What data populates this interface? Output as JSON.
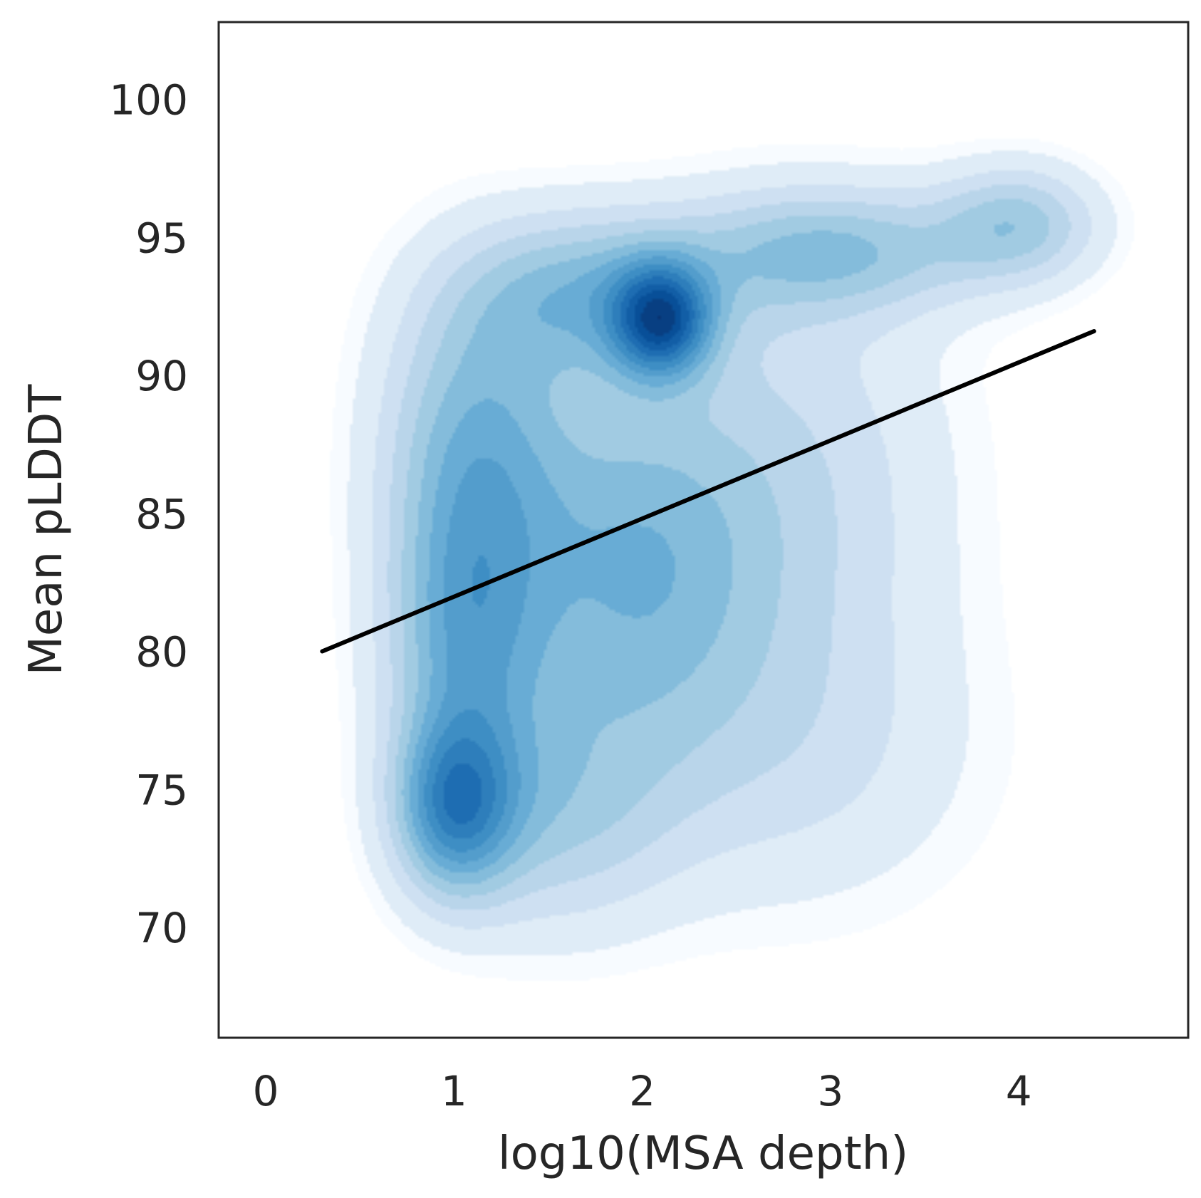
{
  "chart_data": {
    "type": "heatmap",
    "subtype": "kde-density-with-regression-line",
    "title": "",
    "xlabel": "log10(MSA depth)",
    "ylabel": "Mean pLDDT",
    "xlim": [
      -0.25,
      4.9
    ],
    "ylim": [
      66,
      102.8
    ],
    "x_ticks": [
      0,
      1,
      2,
      3,
      4
    ],
    "y_ticks": [
      70,
      75,
      80,
      85,
      90,
      95,
      100
    ],
    "grid": false,
    "colormap": "Blues",
    "density_modes": [
      {
        "x": 2.1,
        "y": 92.0,
        "weight": 1.0,
        "sx": 0.18,
        "sy": 1.4
      },
      {
        "x": 1.0,
        "y": 74.3,
        "weight": 0.75,
        "sx": 0.22,
        "sy": 2.2
      },
      {
        "x": 1.05,
        "y": 80.5,
        "weight": 0.6,
        "sx": 0.3,
        "sy": 4.0
      },
      {
        "x": 1.1,
        "y": 88.0,
        "weight": 0.5,
        "sx": 0.35,
        "sy": 4.0
      },
      {
        "x": 1.7,
        "y": 93.0,
        "weight": 0.5,
        "sx": 0.45,
        "sy": 2.0
      },
      {
        "x": 3.0,
        "y": 94.5,
        "weight": 0.5,
        "sx": 0.55,
        "sy": 1.6
      },
      {
        "x": 4.0,
        "y": 95.5,
        "weight": 0.45,
        "sx": 0.3,
        "sy": 1.5
      },
      {
        "x": 1.9,
        "y": 83.0,
        "weight": 0.55,
        "sx": 0.5,
        "sy": 5.0
      },
      {
        "x": 2.8,
        "y": 86.0,
        "weight": 0.3,
        "sx": 0.6,
        "sy": 6.0
      },
      {
        "x": 2.8,
        "y": 76.0,
        "weight": 0.2,
        "sx": 0.7,
        "sy": 4.0
      },
      {
        "x": 1.5,
        "y": 74.0,
        "weight": 0.35,
        "sx": 0.45,
        "sy": 3.0
      }
    ],
    "regression_line": {
      "x": [
        0.3,
        4.4
      ],
      "y": [
        80.0,
        91.6
      ],
      "color": "#000000"
    }
  }
}
